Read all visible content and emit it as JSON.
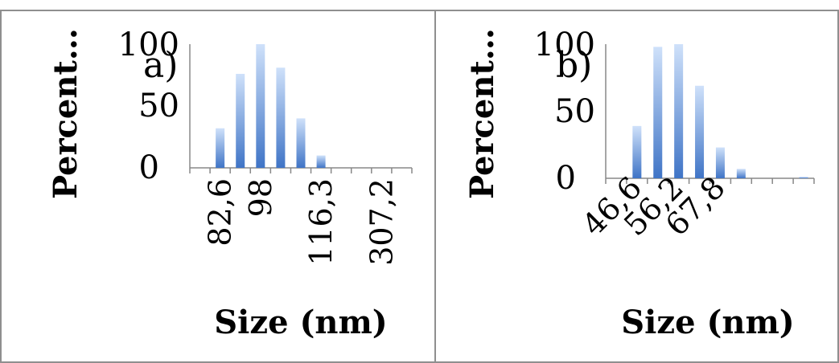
{
  "chart_data": [
    {
      "type": "bar",
      "panel_label": "a)",
      "ylabel": "Percent…",
      "xlabel": "Size (nm)",
      "ylim": [
        0,
        100
      ],
      "yticks": [
        "0",
        "50",
        "100"
      ],
      "bar_color": "#5b8fd8",
      "categories": [
        "",
        "82,6",
        "",
        "98",
        "",
        "",
        "116,3",
        "",
        "",
        "307,2",
        ""
      ],
      "values": [
        0,
        32,
        76,
        100,
        81,
        40,
        10,
        0,
        0,
        0,
        0
      ]
    },
    {
      "type": "bar",
      "panel_label": "b)",
      "ylabel": "Percent…",
      "xlabel": "Size (nm)",
      "ylim": [
        0,
        100
      ],
      "yticks": [
        "0",
        "50",
        "100"
      ],
      "bar_color": "#5b8fd8",
      "categories": [
        "",
        "46,6",
        "",
        "56,2",
        "",
        "67,8",
        "",
        "",
        "",
        ""
      ],
      "values": [
        0,
        39,
        98,
        100,
        69,
        23,
        7,
        0,
        0,
        1
      ]
    }
  ]
}
